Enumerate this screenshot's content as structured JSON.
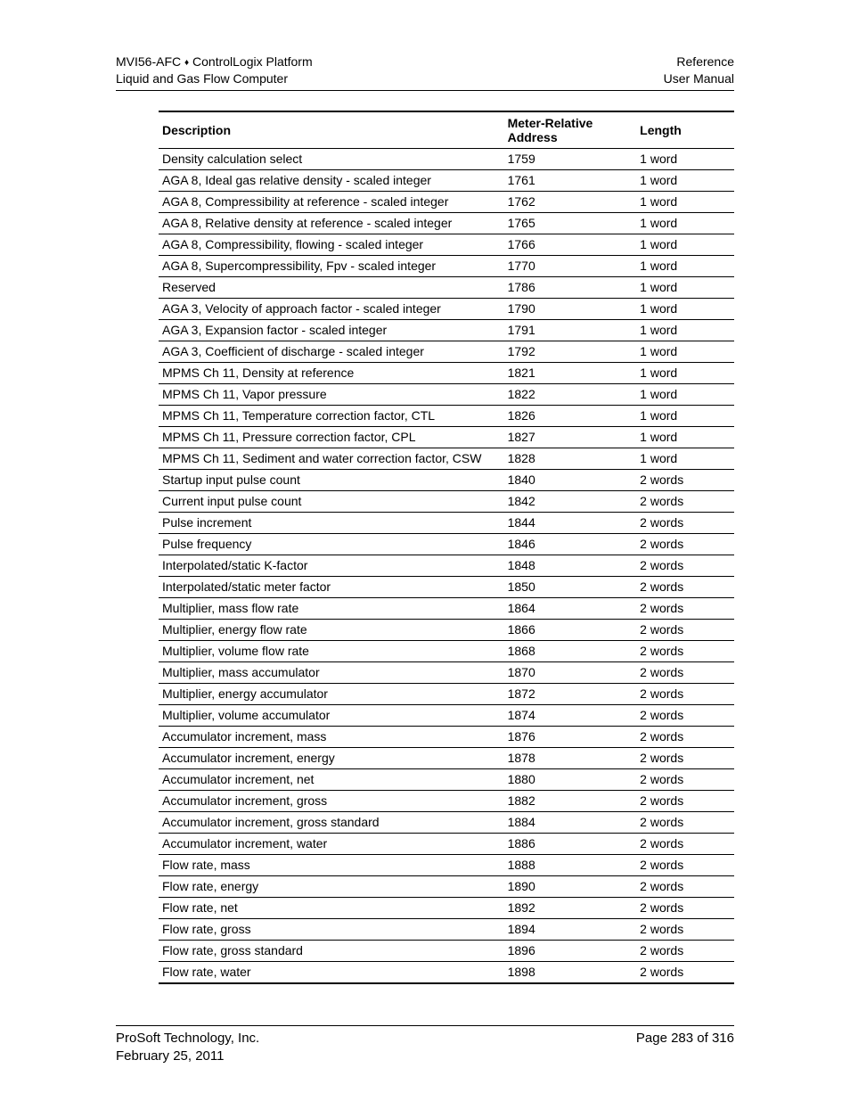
{
  "header": {
    "left_line1_a": "MVI56-AFC ",
    "left_line1_b": " ControlLogix Platform",
    "left_line2": "Liquid and Gas Flow Computer",
    "right_line1": "Reference",
    "right_line2": "User Manual",
    "diamond": "♦"
  },
  "table": {
    "columns": [
      "Description",
      "Meter-Relative Address",
      "Length"
    ],
    "rows": [
      [
        "Density calculation select",
        "1759",
        "1 word"
      ],
      [
        "AGA 8, Ideal gas relative density - scaled integer",
        "1761",
        "1 word"
      ],
      [
        "AGA 8, Compressibility at reference - scaled integer",
        "1762",
        "1 word"
      ],
      [
        "AGA 8, Relative density at reference - scaled integer",
        "1765",
        "1 word"
      ],
      [
        "AGA 8, Compressibility, flowing - scaled integer",
        "1766",
        "1 word"
      ],
      [
        "AGA 8, Supercompressibility, Fpv - scaled integer",
        "1770",
        "1 word"
      ],
      [
        "Reserved",
        "1786",
        "1 word"
      ],
      [
        "AGA 3, Velocity of approach factor - scaled integer",
        "1790",
        "1 word"
      ],
      [
        "AGA 3, Expansion factor - scaled integer",
        "1791",
        "1 word"
      ],
      [
        "AGA 3, Coefficient of discharge - scaled integer",
        "1792",
        "1 word"
      ],
      [
        "MPMS Ch 11, Density at reference",
        "1821",
        "1 word"
      ],
      [
        "MPMS Ch 11, Vapor pressure",
        "1822",
        "1 word"
      ],
      [
        "MPMS Ch 11, Temperature correction factor, CTL",
        "1826",
        "1 word"
      ],
      [
        "MPMS Ch 11, Pressure correction factor, CPL",
        "1827",
        "1 word"
      ],
      [
        "MPMS Ch 11, Sediment and water correction factor, CSW",
        "1828",
        "1 word"
      ],
      [
        "Startup input pulse count",
        "1840",
        "2 words"
      ],
      [
        "Current input pulse count",
        "1842",
        "2 words"
      ],
      [
        "Pulse increment",
        "1844",
        "2 words"
      ],
      [
        "Pulse frequency",
        "1846",
        "2 words"
      ],
      [
        "Interpolated/static K-factor",
        "1848",
        "2 words"
      ],
      [
        "Interpolated/static meter factor",
        "1850",
        "2 words"
      ],
      [
        "Multiplier, mass flow rate",
        "1864",
        "2 words"
      ],
      [
        "Multiplier, energy flow rate",
        "1866",
        "2 words"
      ],
      [
        "Multiplier, volume flow rate",
        "1868",
        "2 words"
      ],
      [
        "Multiplier, mass accumulator",
        "1870",
        "2 words"
      ],
      [
        "Multiplier, energy accumulator",
        "1872",
        "2 words"
      ],
      [
        "Multiplier, volume accumulator",
        "1874",
        "2 words"
      ],
      [
        "Accumulator increment, mass",
        "1876",
        "2 words"
      ],
      [
        "Accumulator increment, energy",
        "1878",
        "2 words"
      ],
      [
        "Accumulator increment, net",
        "1880",
        "2 words"
      ],
      [
        "Accumulator increment, gross",
        "1882",
        "2 words"
      ],
      [
        "Accumulator increment, gross standard",
        "1884",
        "2 words"
      ],
      [
        "Accumulator increment, water",
        "1886",
        "2 words"
      ],
      [
        "Flow rate, mass",
        "1888",
        "2 words"
      ],
      [
        "Flow rate, energy",
        "1890",
        "2 words"
      ],
      [
        "Flow rate, net",
        "1892",
        "2 words"
      ],
      [
        "Flow rate, gross",
        "1894",
        "2 words"
      ],
      [
        "Flow rate, gross standard",
        "1896",
        "2 words"
      ],
      [
        "Flow rate, water",
        "1898",
        "2 words"
      ]
    ]
  },
  "footer": {
    "left_line1": "ProSoft Technology, Inc.",
    "left_line2": "February 25, 2011",
    "right_line1": "Page 283 of 316"
  }
}
